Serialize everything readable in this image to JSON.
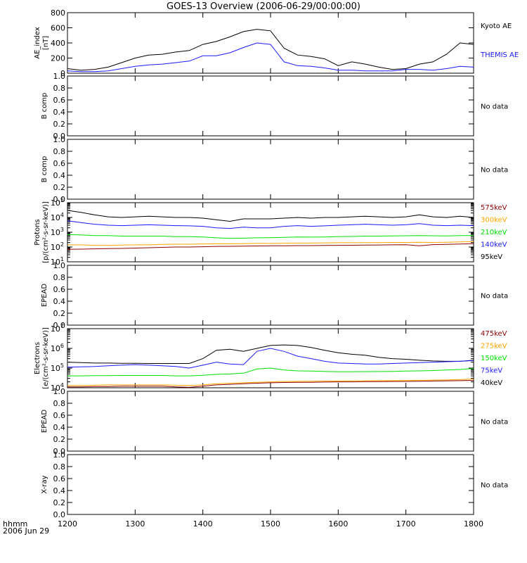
{
  "title": "GOES-13 Overview (2006-06-29/00:00:00)",
  "time_axis": {
    "ticks": [
      "1200",
      "1300",
      "1400",
      "1500",
      "1600",
      "1700",
      "1800"
    ],
    "label_line1": "hhmm",
    "label_line2": "2006 Jun 29"
  },
  "colors": {
    "black": "#000000",
    "blue": "#1a1aff",
    "green": "#00e000",
    "orange": "#ffa500",
    "darkred": "#8b0000"
  },
  "chart_data": [
    {
      "type": "line",
      "id": "ae",
      "ylabel": [
        "AE_index",
        "[nT]"
      ],
      "yticks": [
        "0",
        "200",
        "400",
        "600",
        "800"
      ],
      "ylim": [
        0,
        800
      ],
      "x": [
        1200,
        1220,
        1240,
        1260,
        1280,
        1300,
        1320,
        1340,
        1360,
        1380,
        1400,
        1420,
        1440,
        1460,
        1480,
        1500,
        1520,
        1540,
        1560,
        1580,
        1600,
        1620,
        1640,
        1660,
        1680,
        1700,
        1720,
        1740,
        1760,
        1780,
        1800
      ],
      "series": [
        {
          "name": "Kyoto AE",
          "color_key": "black",
          "values": [
            60,
            40,
            50,
            80,
            140,
            200,
            240,
            250,
            280,
            300,
            380,
            420,
            480,
            550,
            580,
            560,
            330,
            240,
            220,
            190,
            100,
            150,
            120,
            80,
            50,
            60,
            120,
            150,
            250,
            400,
            380
          ]
        },
        {
          "name": "THEMIS AE",
          "color_key": "blue",
          "values": [
            30,
            20,
            20,
            30,
            60,
            90,
            110,
            120,
            140,
            160,
            230,
            230,
            270,
            340,
            400,
            380,
            150,
            100,
            90,
            70,
            40,
            40,
            30,
            30,
            30,
            50,
            50,
            40,
            60,
            90,
            80
          ]
        }
      ]
    },
    {
      "type": "line",
      "id": "bcomp1",
      "ylabel": [
        "B comp"
      ],
      "yticks": [
        "0.0",
        "0.2",
        "0.4",
        "0.6",
        "0.8",
        "1.0"
      ],
      "ylim": [
        0,
        1
      ],
      "status": "No data"
    },
    {
      "type": "line",
      "id": "bcomp2",
      "ylabel": [
        "B comp"
      ],
      "yticks": [
        "0.0",
        "0.2",
        "0.4",
        "0.6",
        "0.8",
        "1.0"
      ],
      "ylim": [
        0,
        1
      ],
      "status": "No data"
    },
    {
      "type": "line",
      "id": "protons",
      "ylabel": [
        "Protons",
        "[p/(cm²-s-sr-keV)]"
      ],
      "yticks_exp": [
        "1",
        "2",
        "3",
        "4",
        "5"
      ],
      "yscale": "log",
      "ylim": [
        10,
        100000
      ],
      "x": [
        1200,
        1220,
        1240,
        1260,
        1280,
        1300,
        1320,
        1340,
        1360,
        1380,
        1400,
        1420,
        1440,
        1460,
        1480,
        1500,
        1520,
        1540,
        1560,
        1580,
        1600,
        1620,
        1640,
        1660,
        1680,
        1700,
        1720,
        1740,
        1760,
        1780,
        1800
      ],
      "series": [
        {
          "name": "95keV",
          "color_key": "black",
          "values": [
            30000,
            22000,
            15000,
            11000,
            10000,
            11000,
            12000,
            11000,
            10000,
            10000,
            9000,
            7000,
            5500,
            8000,
            8000,
            8000,
            9000,
            10000,
            9000,
            10000,
            10000,
            11000,
            12000,
            11000,
            10000,
            11000,
            15000,
            11000,
            10000,
            12000,
            10000
          ]
        },
        {
          "name": "140keV",
          "color_key": "blue",
          "values": [
            6000,
            4500,
            3500,
            3000,
            2800,
            3000,
            3200,
            3000,
            2800,
            2700,
            2500,
            2000,
            1800,
            2200,
            2000,
            2000,
            2500,
            2800,
            2500,
            2700,
            3000,
            3200,
            3500,
            3200,
            3000,
            3200,
            3800,
            3000,
            2800,
            3000,
            2800
          ]
        },
        {
          "name": "210keV",
          "color_key": "green",
          "values": [
            700,
            650,
            600,
            600,
            550,
            550,
            550,
            550,
            500,
            500,
            480,
            420,
            380,
            400,
            420,
            430,
            450,
            480,
            470,
            480,
            500,
            520,
            550,
            550,
            560,
            580,
            600,
            580,
            560,
            600,
            600
          ]
        },
        {
          "name": "300keV",
          "color_key": "orange",
          "values": [
            140,
            140,
            130,
            130,
            135,
            140,
            140,
            150,
            155,
            155,
            160,
            165,
            165,
            170,
            175,
            175,
            180,
            185,
            185,
            190,
            195,
            195,
            200,
            200,
            205,
            205,
            210,
            205,
            210,
            220,
            230
          ]
        },
        {
          "name": "575keV",
          "color_key": "darkred",
          "values": [
            70,
            72,
            75,
            78,
            80,
            85,
            90,
            95,
            100,
            100,
            105,
            110,
            112,
            115,
            118,
            120,
            122,
            125,
            125,
            128,
            130,
            132,
            135,
            138,
            140,
            142,
            120,
            145,
            150,
            160,
            170
          ]
        }
      ],
      "legend_order": [
        "575keV",
        "300keV",
        "210keV",
        "140keV",
        "95keV"
      ]
    },
    {
      "type": "line",
      "id": "epead1",
      "ylabel": [
        "EPEAD"
      ],
      "yticks": [
        "0.0",
        "0.2",
        "0.4",
        "0.6",
        "0.8",
        "1.0"
      ],
      "ylim": [
        0,
        1
      ],
      "status": "No data"
    },
    {
      "type": "line",
      "id": "electrons",
      "ylabel": [
        "Electrons",
        "[e/(cm²-s-sr-keV)]"
      ],
      "yticks_exp": [
        "4",
        "5",
        "6",
        "7"
      ],
      "yscale": "log",
      "ylim": [
        10000,
        10000000
      ],
      "x": [
        1200,
        1220,
        1240,
        1260,
        1280,
        1300,
        1320,
        1340,
        1360,
        1380,
        1400,
        1420,
        1440,
        1460,
        1480,
        1500,
        1520,
        1540,
        1560,
        1580,
        1600,
        1620,
        1640,
        1660,
        1680,
        1700,
        1720,
        1740,
        1760,
        1780,
        1800
      ],
      "series": [
        {
          "name": "40keV",
          "color_key": "black",
          "values": [
            200000,
            190000,
            180000,
            180000,
            175000,
            175000,
            170000,
            170000,
            170000,
            170000,
            300000,
            800000,
            900000,
            700000,
            1000000,
            1400000,
            1500000,
            1400000,
            1100000,
            800000,
            600000,
            500000,
            450000,
            350000,
            300000,
            280000,
            250000,
            230000,
            220000,
            220000,
            250000
          ]
        },
        {
          "name": "75keV",
          "color_key": "blue",
          "values": [
            110000,
            115000,
            120000,
            130000,
            140000,
            150000,
            140000,
            130000,
            120000,
            100000,
            140000,
            200000,
            160000,
            150000,
            700000,
            1000000,
            700000,
            400000,
            300000,
            220000,
            180000,
            170000,
            160000,
            160000,
            170000,
            180000,
            190000,
            200000,
            210000,
            220000,
            240000
          ]
        },
        {
          "name": "150keV",
          "color_key": "green",
          "values": [
            40000,
            40000,
            41000,
            41000,
            42000,
            42000,
            42000,
            42000,
            40000,
            40000,
            43000,
            48000,
            50000,
            55000,
            90000,
            100000,
            80000,
            72000,
            70000,
            68000,
            65000,
            65000,
            66000,
            67000,
            68000,
            70000,
            72000,
            75000,
            80000,
            85000,
            95000
          ]
        },
        {
          "name": "275keV",
          "color_key": "orange",
          "values": [
            13000,
            13000,
            13500,
            14000,
            14000,
            14000,
            14000,
            14000,
            13500,
            13000,
            14000,
            16000,
            17000,
            18000,
            19000,
            20000,
            21000,
            21000,
            21500,
            22000,
            22000,
            22500,
            22500,
            23000,
            23000,
            23500,
            24000,
            24500,
            25000,
            26000,
            28000
          ]
        },
        {
          "name": "475keV",
          "color_key": "darkred",
          "values": [
            11000,
            11000,
            11500,
            11500,
            12000,
            12000,
            12000,
            12000,
            11000,
            10500,
            12000,
            14000,
            15000,
            16000,
            17000,
            18000,
            18500,
            19000,
            19000,
            19500,
            20000,
            20000,
            20500,
            20500,
            21000,
            21000,
            21500,
            22000,
            22500,
            23000,
            24000
          ]
        }
      ],
      "legend_order": [
        "475keV",
        "275keV",
        "150keV",
        "75keV",
        "40keV"
      ]
    },
    {
      "type": "line",
      "id": "epead2",
      "ylabel": [
        "EPEAD"
      ],
      "yticks": [
        "0.0",
        "0.2",
        "0.4",
        "0.6",
        "0.8",
        "1.0"
      ],
      "ylim": [
        0,
        1
      ],
      "status": "No data"
    },
    {
      "type": "line",
      "id": "xray",
      "ylabel": [
        "X-ray"
      ],
      "yticks": [
        "0.0",
        "0.2",
        "0.4",
        "0.6",
        "0.8",
        "1.0"
      ],
      "ylim": [
        0,
        1
      ],
      "status": "No data"
    }
  ]
}
